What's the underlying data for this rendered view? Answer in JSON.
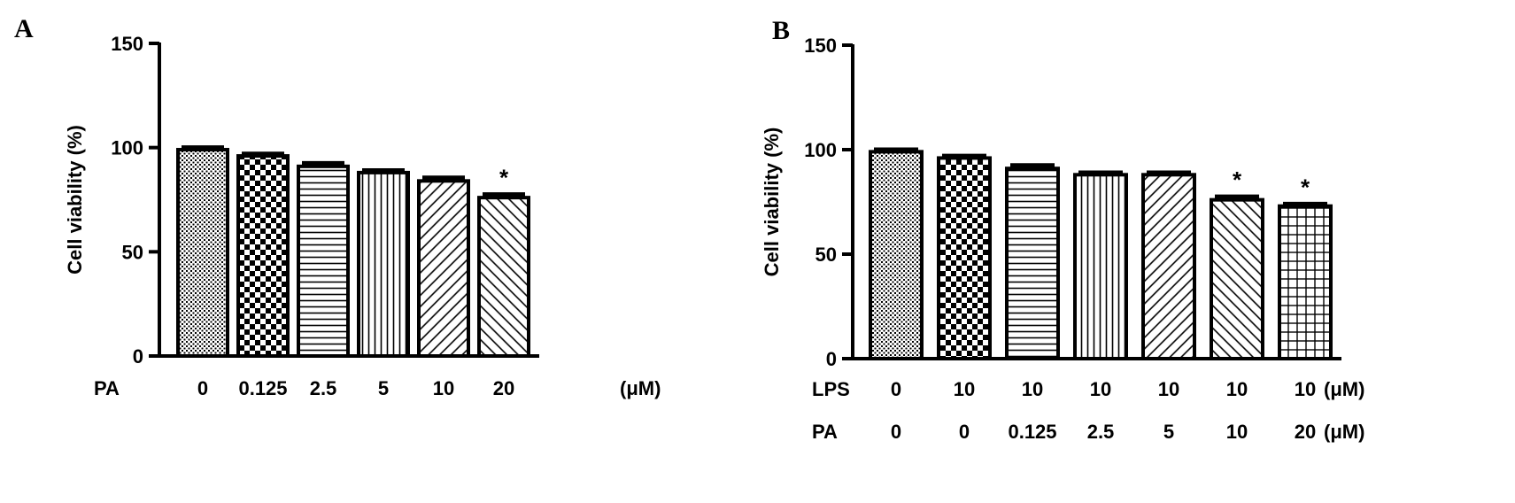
{
  "chart_data": [
    {
      "panel": "A",
      "type": "bar",
      "ylabel": "Cell viability (%)",
      "ylim": [
        0,
        150
      ],
      "yticks": [
        0,
        50,
        100,
        150
      ],
      "row_labels": [
        {
          "label": "PA",
          "values": [
            "0",
            "0.125",
            "2.5",
            "5",
            "10",
            "20"
          ],
          "unit": "(μM)"
        }
      ],
      "values": [
        99,
        96,
        91,
        88,
        84,
        76
      ],
      "errors": [
        1,
        1,
        1.5,
        1,
        1.5,
        1.5
      ],
      "significance": [
        "",
        "",
        "",
        "",
        "",
        "*"
      ],
      "patterns": [
        "dots",
        "checker",
        "hlines",
        "vlines",
        "diag-right",
        "diag-left"
      ]
    },
    {
      "panel": "B",
      "type": "bar",
      "ylabel": "Cell viability (%)",
      "ylim": [
        0,
        150
      ],
      "yticks": [
        0,
        50,
        100,
        150
      ],
      "row_labels": [
        {
          "label": "LPS",
          "values": [
            "0",
            "10",
            "10",
            "10",
            "10",
            "10",
            "10"
          ],
          "unit": "(μM)"
        },
        {
          "label": "PA",
          "values": [
            "0",
            "0",
            "0.125",
            "2.5",
            "5",
            "10",
            "20"
          ],
          "unit": "(μM)"
        }
      ],
      "values": [
        99,
        96,
        91,
        88,
        88,
        76,
        73
      ],
      "errors": [
        1,
        1,
        1.5,
        1,
        1,
        1.5,
        1
      ],
      "significance": [
        "",
        "",
        "",
        "",
        "",
        "*",
        "*"
      ],
      "patterns": [
        "dots",
        "checker",
        "hlines",
        "vlines",
        "diag-right",
        "diag-left",
        "grid"
      ]
    }
  ]
}
